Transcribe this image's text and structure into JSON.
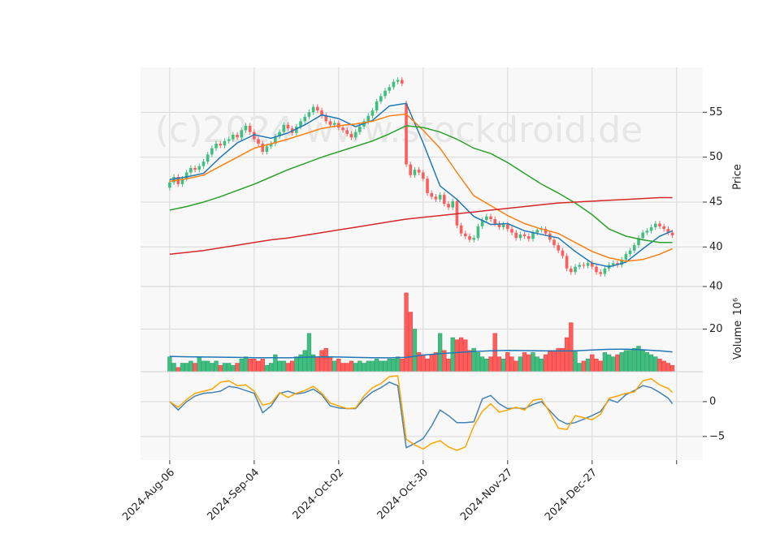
{
  "chart_data": {
    "type": "candlestick",
    "watermark": "(c)2024 www.stockdroid.de",
    "xlim": [
      -6.9,
      126.2
    ],
    "xticks": [
      {
        "value": 0,
        "label": "2024-Aug-06"
      },
      {
        "value": 20,
        "label": "2024-Sep-04"
      },
      {
        "value": 40,
        "label": "2024-Oct-02"
      },
      {
        "value": 60,
        "label": "2024-Oct-30"
      },
      {
        "value": 80,
        "label": "2024-Nov-27"
      },
      {
        "value": 100,
        "label": "2024-Dec-27"
      },
      {
        "value": 120,
        "label": null
      }
    ],
    "grid": true,
    "price": {
      "ylabel": "Price",
      "ylim": [
        35.6,
        60
      ],
      "yticks": [
        40,
        45,
        50,
        55
      ],
      "up_color": "#3fbf7f",
      "down_color": "#ff5c5c",
      "open": [
        46.6,
        47.2,
        47.8,
        47.0,
        47.6,
        48.3,
        48.8,
        48.6,
        49.0,
        49.5,
        50.3,
        51.0,
        51.5,
        51.3,
        51.8,
        52.0,
        52.5,
        52.2,
        53.0,
        53.5,
        52.8,
        52.0,
        51.5,
        50.6,
        51.2,
        51.5,
        52.3,
        52.8,
        53.6,
        53.2,
        52.7,
        53.4,
        54.0,
        54.5,
        55.0,
        55.6,
        55.2,
        54.6,
        54.0,
        53.6,
        53.8,
        53.3,
        53.0,
        52.6,
        52.2,
        52.8,
        53.4,
        54.0,
        54.6,
        55.2,
        56.2,
        56.8,
        57.4,
        57.8,
        58.4,
        58.6,
        56.0,
        49.2,
        48.0,
        48.6,
        48.3,
        47.6,
        46.0,
        45.6,
        45.3,
        45.8,
        44.8,
        44.4,
        45.1,
        42.4,
        41.5,
        41.2,
        40.8,
        41.0,
        42.3,
        43.0,
        43.4,
        43.1,
        42.6,
        42.2,
        42.5,
        42.0,
        41.6,
        41.0,
        41.4,
        41.2,
        40.9,
        41.6,
        41.9,
        42.0,
        41.5,
        40.8,
        40.2,
        39.6,
        39.0,
        37.6,
        37.2,
        37.8,
        38.0,
        37.9,
        38.2,
        37.8,
        37.2,
        37.0,
        37.6,
        38.0,
        38.2,
        38.0,
        38.6,
        39.2,
        39.6,
        40.2,
        41.0,
        41.6,
        41.8,
        42.2,
        42.6,
        42.3,
        42.0,
        41.6
      ],
      "high": [
        47.5,
        48.1,
        48.1,
        47.9,
        48.6,
        49.1,
        49.1,
        49.3,
        49.8,
        50.6,
        51.3,
        51.8,
        51.8,
        52.1,
        52.3,
        52.8,
        52.8,
        53.3,
        53.8,
        53.8,
        53.1,
        52.3,
        51.8,
        51.5,
        51.8,
        52.6,
        53.1,
        53.9,
        53.9,
        53.5,
        53.7,
        54.3,
        54.8,
        55.3,
        55.9,
        55.9,
        55.5,
        54.9,
        54.3,
        54.1,
        54.1,
        53.6,
        53.3,
        52.9,
        53.1,
        53.7,
        54.3,
        54.9,
        55.5,
        56.5,
        57.1,
        57.7,
        58.1,
        58.7,
        58.9,
        58.9,
        56.3,
        49.5,
        48.9,
        48.9,
        48.6,
        47.9,
        46.3,
        45.9,
        46.1,
        46.1,
        45.1,
        45.4,
        45.4,
        42.7,
        41.8,
        41.5,
        41.3,
        42.6,
        43.3,
        43.7,
        43.7,
        43.4,
        42.9,
        42.8,
        42.8,
        42.3,
        41.9,
        41.7,
        41.7,
        41.5,
        41.9,
        42.2,
        42.3,
        42.3,
        41.8,
        41.1,
        40.5,
        39.9,
        39.3,
        37.9,
        38.1,
        38.3,
        38.3,
        38.5,
        38.5,
        38.1,
        37.5,
        37.9,
        38.3,
        38.5,
        38.5,
        38.9,
        39.5,
        39.9,
        40.5,
        41.3,
        41.9,
        42.1,
        42.5,
        42.9,
        42.9,
        42.6,
        42.3,
        41.9
      ],
      "low": [
        46.3,
        46.9,
        46.7,
        46.7,
        47.3,
        48.0,
        48.3,
        48.3,
        48.7,
        49.2,
        50.0,
        50.7,
        51.0,
        51.0,
        51.5,
        51.7,
        51.9,
        51.9,
        52.7,
        52.5,
        51.7,
        51.2,
        50.3,
        50.3,
        50.9,
        51.2,
        52.0,
        52.5,
        52.9,
        52.4,
        52.4,
        53.1,
        53.7,
        54.2,
        54.7,
        54.9,
        54.3,
        53.7,
        53.3,
        53.3,
        53.0,
        52.7,
        52.3,
        51.9,
        51.9,
        52.5,
        53.1,
        53.7,
        54.3,
        54.9,
        55.9,
        56.5,
        57.1,
        57.5,
        58.1,
        57.9,
        48.9,
        47.7,
        47.7,
        48.0,
        47.3,
        45.7,
        45.3,
        45.0,
        45.0,
        44.5,
        44.1,
        44.1,
        42.1,
        41.2,
        40.9,
        40.5,
        40.5,
        40.7,
        42.0,
        42.7,
        42.8,
        42.3,
        41.9,
        41.9,
        41.7,
        41.3,
        40.7,
        40.7,
        40.9,
        40.6,
        40.6,
        41.3,
        41.6,
        41.2,
        40.5,
        39.9,
        39.3,
        38.7,
        37.3,
        36.9,
        36.9,
        37.5,
        37.6,
        37.6,
        37.5,
        36.9,
        36.7,
        36.7,
        37.3,
        37.7,
        37.7,
        37.7,
        38.3,
        38.9,
        39.3,
        39.9,
        40.7,
        41.3,
        41.5,
        41.9,
        42.0,
        41.7,
        41.3,
        41.0
      ],
      "close": [
        47.2,
        47.8,
        47.0,
        47.6,
        48.3,
        48.8,
        48.6,
        49.0,
        49.5,
        50.3,
        51.0,
        51.5,
        51.3,
        51.8,
        52.0,
        52.5,
        52.2,
        53.0,
        53.5,
        52.8,
        52.0,
        51.5,
        50.6,
        51.2,
        51.5,
        52.3,
        52.8,
        53.6,
        53.2,
        52.7,
        53.4,
        54.0,
        54.5,
        55.0,
        55.6,
        55.2,
        54.6,
        54.0,
        53.6,
        53.8,
        53.3,
        53.0,
        52.6,
        52.2,
        52.8,
        53.4,
        54.0,
        54.6,
        55.2,
        56.2,
        56.8,
        57.4,
        57.8,
        58.4,
        58.6,
        58.2,
        49.2,
        48.0,
        48.6,
        48.3,
        47.6,
        46.0,
        45.6,
        45.3,
        45.8,
        44.8,
        44.4,
        45.1,
        42.4,
        41.5,
        41.2,
        40.8,
        41.0,
        42.3,
        43.0,
        43.4,
        43.1,
        42.6,
        42.2,
        42.5,
        42.0,
        41.6,
        41.0,
        41.4,
        41.2,
        40.9,
        41.6,
        41.9,
        42.0,
        41.5,
        40.8,
        40.2,
        39.6,
        39.0,
        37.6,
        37.2,
        37.8,
        38.0,
        37.9,
        38.2,
        37.8,
        37.2,
        37.0,
        37.6,
        38.0,
        38.2,
        38.0,
        38.6,
        39.2,
        39.6,
        40.2,
        41.0,
        41.6,
        41.8,
        42.2,
        42.6,
        42.3,
        42.0,
        41.6,
        41.3
      ],
      "lines": [
        {
          "color": "#1f77b4",
          "x": [
            0,
            4,
            8,
            12,
            16,
            20,
            24,
            28,
            32,
            36,
            40,
            44,
            48,
            52,
            56,
            60,
            64,
            68,
            72,
            76,
            80,
            84,
            88,
            92,
            96,
            100,
            104,
            108,
            112,
            116,
            119
          ],
          "values": [
            47.5,
            47.8,
            48.2,
            50.0,
            51.6,
            52.5,
            52.1,
            52.7,
            53.6,
            54.7,
            54.3,
            53.4,
            54.1,
            55.7,
            56.0,
            51.6,
            46.8,
            45.3,
            43.4,
            42.5,
            42.6,
            41.8,
            41.4,
            41.0,
            39.5,
            38.2,
            37.8,
            38.3,
            39.8,
            41.2,
            41.8
          ]
        },
        {
          "color": "#ff7f0e",
          "x": [
            0,
            4,
            8,
            12,
            16,
            20,
            24,
            28,
            32,
            36,
            40,
            44,
            48,
            52,
            56,
            60,
            64,
            68,
            72,
            76,
            80,
            84,
            88,
            92,
            96,
            100,
            104,
            108,
            112,
            116,
            119
          ],
          "values": [
            47.3,
            47.6,
            48.0,
            49.0,
            50.0,
            51.0,
            51.5,
            52.0,
            52.6,
            53.2,
            53.5,
            53.7,
            54.0,
            54.6,
            54.8,
            53.0,
            51.0,
            48.3,
            45.7,
            44.6,
            43.5,
            42.6,
            42.0,
            41.5,
            40.5,
            39.5,
            38.8,
            38.4,
            38.6,
            39.2,
            39.8
          ]
        },
        {
          "color": "#2ca02c",
          "x": [
            0,
            4,
            8,
            12,
            16,
            20,
            24,
            28,
            32,
            36,
            40,
            44,
            48,
            52,
            56,
            60,
            64,
            68,
            72,
            76,
            80,
            84,
            88,
            92,
            96,
            100,
            104,
            108,
            112,
            116,
            119
          ],
          "values": [
            44.1,
            44.5,
            45.0,
            45.6,
            46.3,
            47.0,
            47.8,
            48.6,
            49.3,
            50.0,
            50.6,
            51.2,
            51.8,
            52.6,
            53.5,
            53.3,
            52.8,
            52.0,
            51.0,
            50.4,
            49.4,
            48.2,
            47.0,
            46.0,
            44.9,
            43.6,
            42.0,
            41.2,
            40.8,
            40.5,
            40.5
          ]
        },
        {
          "color": "#d62728",
          "x": [
            0,
            4,
            8,
            12,
            16,
            20,
            24,
            28,
            32,
            36,
            40,
            44,
            48,
            52,
            56,
            60,
            64,
            68,
            72,
            76,
            80,
            84,
            88,
            92,
            96,
            100,
            104,
            108,
            112,
            116,
            119
          ],
          "values": [
            39.2,
            39.4,
            39.6,
            39.9,
            40.2,
            40.5,
            40.8,
            41.0,
            41.3,
            41.6,
            41.9,
            42.2,
            42.5,
            42.8,
            43.1,
            43.3,
            43.5,
            43.7,
            43.9,
            44.1,
            44.3,
            44.5,
            44.7,
            44.9,
            45.0,
            45.1,
            45.2,
            45.3,
            45.4,
            45.5,
            45.5
          ]
        }
      ]
    },
    "volume": {
      "ylabel": "Volume",
      "offset_text": "10⁶",
      "ylim": [
        0,
        40
      ],
      "yticks": [
        20,
        40
      ],
      "values": [
        7,
        4,
        2,
        4,
        4,
        5,
        4,
        7,
        5,
        5,
        4,
        5,
        3,
        4,
        4,
        3,
        4,
        6,
        7,
        6,
        6,
        5,
        6,
        3,
        4,
        8,
        5,
        5,
        4,
        5,
        7,
        8,
        10,
        18,
        8,
        7,
        10,
        11,
        7,
        5,
        6,
        4,
        4,
        5,
        4,
        5,
        4,
        5,
        5,
        6,
        5,
        5,
        6,
        6,
        7,
        6,
        37,
        28,
        20,
        9,
        8,
        6,
        8,
        9,
        18,
        10,
        6,
        16,
        15,
        16,
        15,
        10,
        11,
        9,
        7,
        6,
        7,
        18,
        7,
        6,
        9,
        7,
        5,
        7,
        9,
        8,
        9,
        7,
        6,
        8,
        10,
        10,
        11,
        11,
        16,
        23,
        10,
        4,
        5,
        6,
        8,
        6,
        5,
        9,
        8,
        7,
        8,
        9,
        10,
        10,
        11,
        12,
        10,
        9,
        8,
        7,
        6,
        5,
        4,
        3
      ],
      "ma": {
        "color": "#1f77b4",
        "x": [
          0,
          4,
          8,
          12,
          16,
          20,
          24,
          28,
          32,
          36,
          40,
          44,
          48,
          52,
          56,
          60,
          64,
          68,
          72,
          76,
          80,
          84,
          88,
          92,
          96,
          100,
          104,
          108,
          112,
          116,
          119
        ],
        "values": [
          7.2,
          7.0,
          6.9,
          6.8,
          6.7,
          6.6,
          6.6,
          6.5,
          6.8,
          7.0,
          6.9,
          6.7,
          6.6,
          6.5,
          6.7,
          7.8,
          8.5,
          9.0,
          9.5,
          9.8,
          10.0,
          9.9,
          9.8,
          9.7,
          9.8,
          10.2,
          10.5,
          10.6,
          10.3,
          9.8,
          9.3
        ]
      }
    },
    "indicator": {
      "ylim": [
        -8.4,
        4.3
      ],
      "yticks": [
        {
          "value": -5,
          "label": "−5"
        },
        0
      ],
      "lines": [
        {
          "color": "#4682b4",
          "x": [
            0,
            2,
            4,
            6,
            8,
            10,
            12,
            14,
            16,
            18,
            20,
            22,
            24,
            26,
            28,
            30,
            32,
            34,
            36,
            38,
            40,
            42,
            44,
            46,
            48,
            50,
            52,
            54,
            56,
            58,
            60,
            62,
            64,
            66,
            68,
            70,
            72,
            74,
            76,
            78,
            80,
            82,
            84,
            86,
            88,
            90,
            92,
            94,
            96,
            98,
            100,
            102,
            104,
            106,
            108,
            110,
            112,
            114,
            116,
            118,
            119
          ],
          "values": [
            0.0,
            -1.2,
            0.0,
            0.8,
            1.2,
            1.3,
            1.5,
            2.2,
            2.0,
            1.6,
            1.2,
            -1.6,
            -0.6,
            1.2,
            1.5,
            1.1,
            1.3,
            1.8,
            1.0,
            -0.6,
            -0.9,
            -1.0,
            -1.0,
            0.4,
            1.4,
            2.0,
            2.8,
            2.3,
            -6.6,
            -6.0,
            -5.3,
            -3.5,
            -1.2,
            -2.0,
            -3.0,
            -3.0,
            -2.9,
            0.4,
            0.9,
            -0.3,
            -1.0,
            -0.9,
            -1.0,
            -0.4,
            0.0,
            -1.3,
            -2.6,
            -3.2,
            -3.0,
            -2.5,
            -2.0,
            -1.4,
            0.3,
            -0.1,
            1.0,
            1.6,
            2.3,
            2.0,
            1.3,
            0.5,
            -0.3
          ]
        },
        {
          "color": "#ffa500",
          "x": [
            0,
            2,
            4,
            6,
            8,
            10,
            12,
            14,
            16,
            18,
            20,
            22,
            24,
            26,
            28,
            30,
            32,
            34,
            36,
            38,
            40,
            42,
            44,
            46,
            48,
            50,
            52,
            54,
            56,
            58,
            60,
            62,
            64,
            66,
            68,
            70,
            72,
            74,
            76,
            78,
            80,
            82,
            84,
            86,
            88,
            90,
            92,
            94,
            96,
            98,
            100,
            102,
            104,
            106,
            108,
            110,
            112,
            114,
            116,
            118,
            119
          ],
          "values": [
            0.0,
            -0.8,
            0.3,
            1.2,
            1.5,
            1.8,
            2.8,
            3.0,
            2.3,
            2.4,
            1.5,
            -0.5,
            -0.2,
            1.3,
            0.6,
            1.2,
            1.6,
            2.2,
            1.2,
            -0.2,
            -0.6,
            -1.0,
            -0.9,
            0.8,
            2.0,
            2.6,
            3.6,
            3.7,
            -5.4,
            -6.2,
            -6.8,
            -6.0,
            -5.6,
            -6.5,
            -7.0,
            -6.5,
            -3.5,
            -1.4,
            -0.3,
            -1.5,
            -1.2,
            -0.8,
            -1.2,
            0.2,
            0.4,
            -1.6,
            -3.8,
            -4.0,
            -2.0,
            -2.3,
            -2.6,
            -1.8,
            0.5,
            0.8,
            1.2,
            1.4,
            3.0,
            3.3,
            2.4,
            1.9,
            1.3
          ]
        }
      ]
    }
  }
}
